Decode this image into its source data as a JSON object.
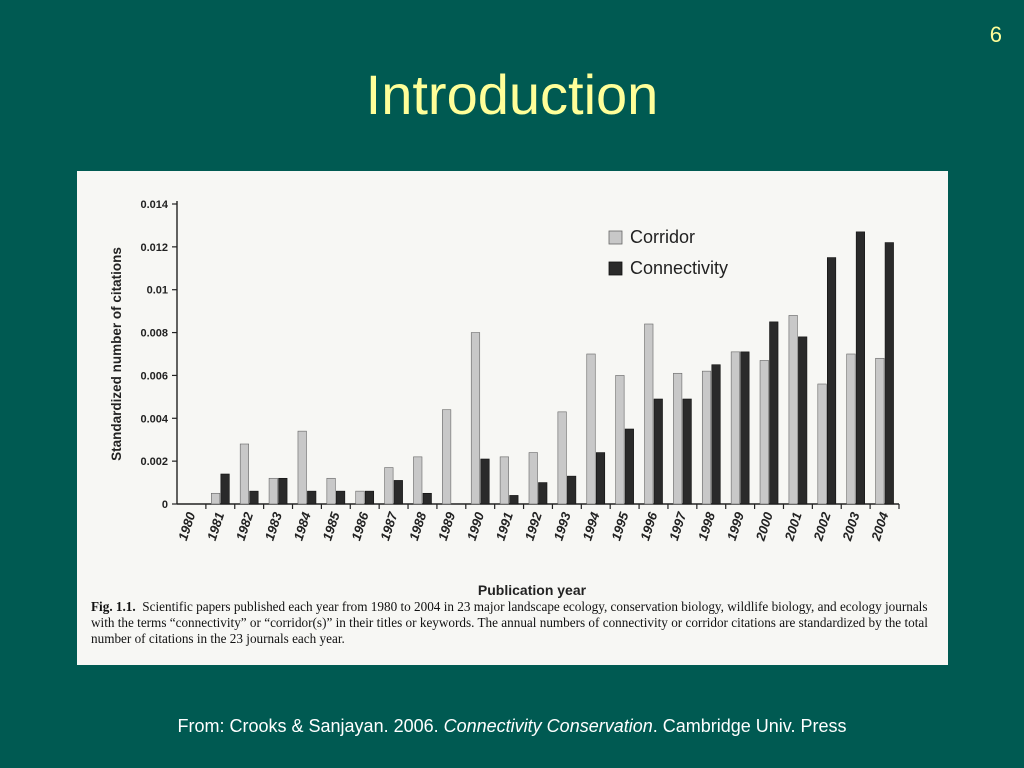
{
  "slide": {
    "number": "6",
    "title": "Introduction"
  },
  "caption": {
    "label": "Fig. 1.1.",
    "text": "Scientific papers published each year from 1980 to 2004 in 23 major landscape ecology, conservation biology, wildlife biology, and ecology journals with the terms “connectivity” or “corridor(s)” in their titles or keywords. The annual numbers of connectivity or corridor citations are standardized by the total number of citations in the 23 journals each year."
  },
  "footer": {
    "prefix": "From: Crooks & Sanjayan. 2006.",
    "book": "Connectivity Conservation",
    "suffix": ". Cambridge Univ. Press"
  },
  "chart_data": {
    "type": "bar",
    "xlabel": "Publication year",
    "ylabel": "Standardized number of citations",
    "ylim": [
      0,
      0.014
    ],
    "yticks": [
      "0",
      "0.002",
      "0.004",
      "0.006",
      "0.008",
      "0.01",
      "0.012",
      "0.014"
    ],
    "legend_position": "top-right",
    "grid": false,
    "categories": [
      "1980",
      "1981",
      "1982",
      "1983",
      "1984",
      "1985",
      "1986",
      "1987",
      "1988",
      "1989",
      "1990",
      "1991",
      "1992",
      "1993",
      "1994",
      "1995",
      "1996",
      "1997",
      "1998",
      "1999",
      "2000",
      "2001",
      "2002",
      "2003",
      "2004"
    ],
    "series": [
      {
        "name": "Corridor",
        "color": "#c8c8c8",
        "values": [
          0,
          0.0005,
          0.0028,
          0.0012,
          0.0034,
          0.0012,
          0.0006,
          0.0017,
          0.0022,
          0.0044,
          0.008,
          0.0022,
          0.0024,
          0.0043,
          0.007,
          0.006,
          0.0084,
          0.0061,
          0.0062,
          0.0071,
          0.0067,
          0.0088,
          0.0056,
          0.007,
          0.0068
        ]
      },
      {
        "name": "Connectivity",
        "color": "#2a2a2a",
        "values": [
          0,
          0.0014,
          0.0006,
          0.0012,
          0.0006,
          0.0006,
          0.0006,
          0.0011,
          0.0005,
          0,
          0.0021,
          0.0004,
          0.001,
          0.0013,
          0.0024,
          0.0035,
          0.0049,
          0.0049,
          0.0065,
          0.0071,
          0.0085,
          0.0078,
          0.0115,
          0.0127,
          0.0122
        ]
      }
    ]
  }
}
